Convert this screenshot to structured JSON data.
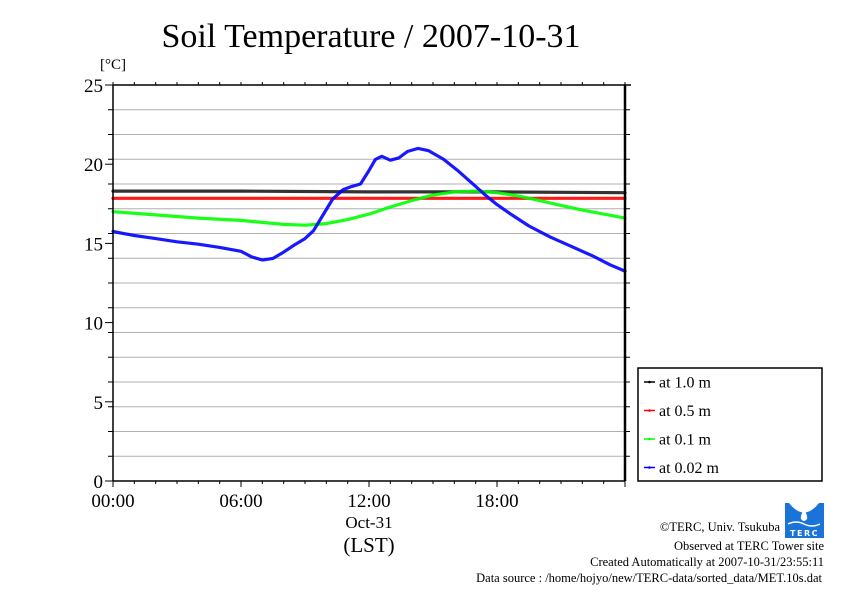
{
  "chart_data": {
    "type": "line",
    "title": "Soil Temperature / 2007-10-31",
    "ylabel": "[°C]",
    "xlabel": "(LST)",
    "date_label": "Oct-31",
    "ylim": [
      0,
      25
    ],
    "xlim_hours": [
      0,
      24
    ],
    "y_ticks": [
      0,
      5,
      10,
      15,
      20,
      25
    ],
    "y_minor_step": 1.5625,
    "x_ticks": [
      {
        "hour": 0,
        "label": "00:00"
      },
      {
        "hour": 6,
        "label": "06:00"
      },
      {
        "hour": 12,
        "label": "12:00"
      },
      {
        "hour": 18,
        "label": "18:00"
      }
    ],
    "grid": true,
    "legend_position": "right",
    "series": [
      {
        "name": "at 1.0 m",
        "color": "#000000",
        "points": [
          [
            0,
            18.3
          ],
          [
            6,
            18.3
          ],
          [
            12,
            18.25
          ],
          [
            18,
            18.25
          ],
          [
            24,
            18.2
          ]
        ]
      },
      {
        "name": "at 0.5 m",
        "color": "#ff0000",
        "points": [
          [
            0,
            17.85
          ],
          [
            6,
            17.85
          ],
          [
            12,
            17.85
          ],
          [
            18,
            17.85
          ],
          [
            24,
            17.85
          ]
        ]
      },
      {
        "name": "at 0.1 m",
        "color": "#00ff00",
        "points": [
          [
            0,
            17.0
          ],
          [
            2,
            16.8
          ],
          [
            4,
            16.6
          ],
          [
            6,
            16.45
          ],
          [
            8,
            16.2
          ],
          [
            9,
            16.15
          ],
          [
            10,
            16.25
          ],
          [
            11,
            16.5
          ],
          [
            12,
            16.85
          ],
          [
            13,
            17.3
          ],
          [
            14,
            17.7
          ],
          [
            15,
            18.05
          ],
          [
            16,
            18.25
          ],
          [
            17,
            18.3
          ],
          [
            18,
            18.2
          ],
          [
            19,
            18.0
          ],
          [
            20,
            17.7
          ],
          [
            21,
            17.4
          ],
          [
            22,
            17.1
          ],
          [
            23,
            16.85
          ],
          [
            24,
            16.6
          ]
        ]
      },
      {
        "name": "at 0.02 m",
        "color": "#0000ff",
        "points": [
          [
            0,
            15.75
          ],
          [
            1,
            15.5
          ],
          [
            2,
            15.3
          ],
          [
            3,
            15.1
          ],
          [
            4,
            14.95
          ],
          [
            5,
            14.75
          ],
          [
            6,
            14.5
          ],
          [
            6.5,
            14.15
          ],
          [
            7,
            13.95
          ],
          [
            7.5,
            14.05
          ],
          [
            8,
            14.45
          ],
          [
            8.5,
            14.9
          ],
          [
            9,
            15.3
          ],
          [
            9.4,
            15.8
          ],
          [
            9.8,
            16.7
          ],
          [
            10.3,
            17.8
          ],
          [
            10.8,
            18.4
          ],
          [
            11.2,
            18.6
          ],
          [
            11.6,
            18.75
          ],
          [
            12.0,
            19.6
          ],
          [
            12.3,
            20.3
          ],
          [
            12.6,
            20.5
          ],
          [
            13.0,
            20.25
          ],
          [
            13.4,
            20.4
          ],
          [
            13.8,
            20.8
          ],
          [
            14.3,
            21.0
          ],
          [
            14.8,
            20.85
          ],
          [
            15.5,
            20.3
          ],
          [
            16.2,
            19.55
          ],
          [
            17,
            18.6
          ],
          [
            17.5,
            18.0
          ],
          [
            18,
            17.45
          ],
          [
            18.7,
            16.8
          ],
          [
            19.5,
            16.1
          ],
          [
            20.5,
            15.4
          ],
          [
            21.5,
            14.8
          ],
          [
            22.5,
            14.2
          ],
          [
            23.3,
            13.65
          ],
          [
            24,
            13.25
          ]
        ]
      }
    ]
  },
  "credits": {
    "copyright": "©TERC, Univ. Tsukuba",
    "observed": "Observed at TERC Tower site",
    "created": "Created Automatically at 2007-10-31/23:55:11",
    "source": "Data source : /home/hojyo/new/TERC-data/sorted_data/MET.10s.dat",
    "logo_text": "TERC",
    "logo_color": "#1a73d9"
  }
}
